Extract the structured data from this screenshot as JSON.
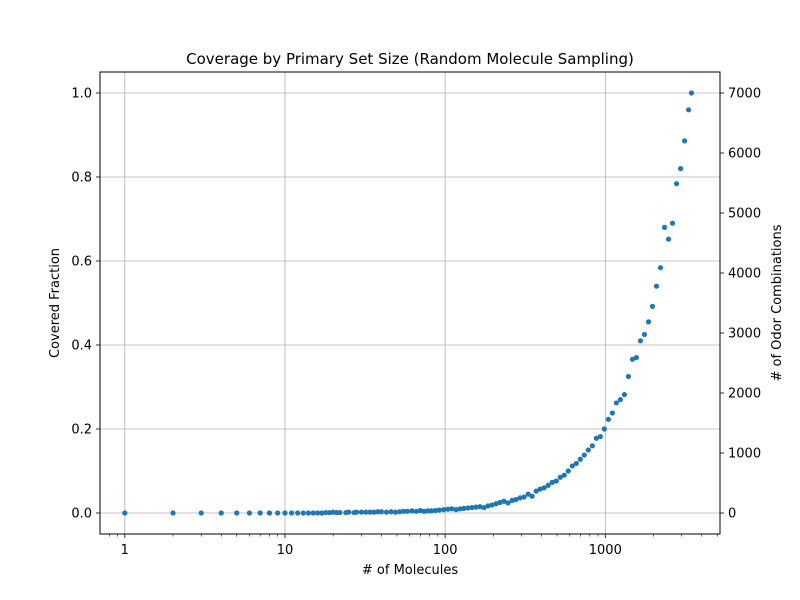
{
  "chart_data": {
    "type": "scatter",
    "title": "Coverage by Primary Set Size (Random Molecule Sampling)",
    "xlabel": "# of Molecules",
    "ylabel": "Covered Fraction",
    "y2label": "# of Odor Combinations",
    "xscale": "log",
    "xlim": [
      0.7,
      5200
    ],
    "ylim": [
      -0.05,
      1.05
    ],
    "y2lim": [
      -350,
      7350
    ],
    "x_ticks": [
      1,
      10,
      100,
      1000
    ],
    "x_tick_labels": [
      "1",
      "10",
      "100",
      "1000"
    ],
    "y_ticks": [
      0.0,
      0.2,
      0.4,
      0.6,
      0.8,
      1.0
    ],
    "y_tick_labels": [
      "0.0",
      "0.2",
      "0.4",
      "0.6",
      "0.8",
      "1.0"
    ],
    "y2_ticks": [
      0,
      1000,
      2000,
      3000,
      4000,
      5000,
      6000,
      7000
    ],
    "y2_tick_labels": [
      "0",
      "1000",
      "2000",
      "3000",
      "4000",
      "5000",
      "6000",
      "7000"
    ],
    "grid": true,
    "marker_color": "#1f77b4",
    "points": [
      [
        1,
        0.0
      ],
      [
        2,
        0.0
      ],
      [
        3,
        0.0
      ],
      [
        4,
        0.0
      ],
      [
        5,
        0.0
      ],
      [
        6,
        0.0
      ],
      [
        7,
        0.0
      ],
      [
        8,
        0.0
      ],
      [
        9,
        0.0
      ],
      [
        10,
        0.0
      ],
      [
        11,
        0.0
      ],
      [
        12,
        0.0
      ],
      [
        13,
        0.0
      ],
      [
        14,
        0.0
      ],
      [
        15,
        0.0
      ],
      [
        16,
        0.0
      ],
      [
        17,
        0.0
      ],
      [
        18,
        0.001
      ],
      [
        19,
        0.001
      ],
      [
        20,
        0.002
      ],
      [
        21,
        0.001
      ],
      [
        22,
        0.001
      ],
      [
        24,
        0.001
      ],
      [
        25,
        0.002
      ],
      [
        27,
        0.001
      ],
      [
        28,
        0.002
      ],
      [
        30,
        0.002
      ],
      [
        32,
        0.002
      ],
      [
        34,
        0.002
      ],
      [
        36,
        0.002
      ],
      [
        38,
        0.003
      ],
      [
        40,
        0.003
      ],
      [
        43,
        0.002
      ],
      [
        46,
        0.003
      ],
      [
        49,
        0.002
      ],
      [
        52,
        0.003
      ],
      [
        55,
        0.004
      ],
      [
        58,
        0.004
      ],
      [
        62,
        0.005
      ],
      [
        66,
        0.004
      ],
      [
        70,
        0.006
      ],
      [
        74,
        0.004
      ],
      [
        78,
        0.005
      ],
      [
        82,
        0.005
      ],
      [
        87,
        0.006
      ],
      [
        92,
        0.007
      ],
      [
        98,
        0.008
      ],
      [
        104,
        0.009
      ],
      [
        110,
        0.01
      ],
      [
        117,
        0.008
      ],
      [
        124,
        0.01
      ],
      [
        131,
        0.011
      ],
      [
        139,
        0.012
      ],
      [
        147,
        0.013
      ],
      [
        156,
        0.014
      ],
      [
        165,
        0.015
      ],
      [
        175,
        0.013
      ],
      [
        185,
        0.017
      ],
      [
        196,
        0.019
      ],
      [
        208,
        0.022
      ],
      [
        220,
        0.025
      ],
      [
        233,
        0.028
      ],
      [
        247,
        0.024
      ],
      [
        262,
        0.03
      ],
      [
        277,
        0.032
      ],
      [
        294,
        0.036
      ],
      [
        311,
        0.038
      ],
      [
        330,
        0.045
      ],
      [
        349,
        0.04
      ],
      [
        370,
        0.052
      ],
      [
        392,
        0.057
      ],
      [
        415,
        0.06
      ],
      [
        440,
        0.066
      ],
      [
        466,
        0.073
      ],
      [
        494,
        0.076
      ],
      [
        523,
        0.085
      ],
      [
        554,
        0.09
      ],
      [
        587,
        0.1
      ],
      [
        622,
        0.112
      ],
      [
        659,
        0.118
      ],
      [
        698,
        0.128
      ],
      [
        739,
        0.138
      ],
      [
        783,
        0.15
      ],
      [
        830,
        0.16
      ],
      [
        879,
        0.178
      ],
      [
        931,
        0.182
      ],
      [
        986,
        0.2
      ],
      [
        1045,
        0.223
      ],
      [
        1107,
        0.238
      ],
      [
        1172,
        0.262
      ],
      [
        1242,
        0.27
      ],
      [
        1316,
        0.282
      ],
      [
        1394,
        0.325
      ],
      [
        1477,
        0.366
      ],
      [
        1564,
        0.37
      ],
      [
        1657,
        0.41
      ],
      [
        1755,
        0.425
      ],
      [
        1860,
        0.455
      ],
      [
        1970,
        0.492
      ],
      [
        2087,
        0.54
      ],
      [
        2211,
        0.584
      ],
      [
        2342,
        0.68
      ],
      [
        2481,
        0.652
      ],
      [
        2628,
        0.69
      ],
      [
        2784,
        0.784
      ],
      [
        2950,
        0.82
      ],
      [
        3125,
        0.886
      ],
      [
        3310,
        0.96
      ],
      [
        3450,
        1.0
      ]
    ]
  }
}
